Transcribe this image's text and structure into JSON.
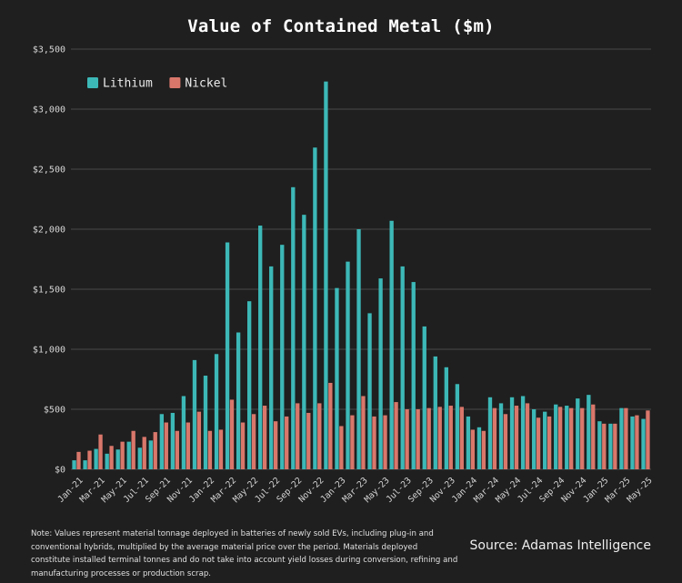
{
  "colors": {
    "background": "#1f1f1f",
    "lithium": "#3cb8b7",
    "nickel": "#d9776b",
    "grid": "#4a4a4a"
  },
  "note": "Note: Values represent material tonnage deployed in batteries of newly sold EVs, including plug-in and conventional hybrids, multiplied by the average material price over the period. Materials deployed constitute installed terminal tonnes and do not take into account yield losses during conversion, refining and manufacturing processes or production scrap.",
  "source": "Source: Adamas Intelligence",
  "chart_data": {
    "type": "bar",
    "title": "Value of Contained Metal ($m)",
    "xlabel": "",
    "ylabel": "",
    "ylim": [
      0,
      3500
    ],
    "yticks": [
      0,
      500,
      1000,
      1500,
      2000,
      2500,
      3000,
      3500
    ],
    "ytick_labels": [
      "$0",
      "$500",
      "$1,000",
      "$1,500",
      "$2,000",
      "$2,500",
      "$3,000",
      "$3,500"
    ],
    "grid": true,
    "legend_position": "top-left",
    "categories": [
      "Jan-21",
      "Feb-21",
      "Mar-21",
      "Apr-21",
      "May-21",
      "Jun-21",
      "Jul-21",
      "Aug-21",
      "Sep-21",
      "Oct-21",
      "Nov-21",
      "Dec-21",
      "Jan-22",
      "Feb-22",
      "Mar-22",
      "Apr-22",
      "May-22",
      "Jun-22",
      "Jul-22",
      "Aug-22",
      "Sep-22",
      "Oct-22",
      "Nov-22",
      "Dec-22",
      "Jan-23",
      "Feb-23",
      "Mar-23",
      "Apr-23",
      "May-23",
      "Jun-23",
      "Jul-23",
      "Aug-23",
      "Sep-23",
      "Oct-23",
      "Nov-23",
      "Dec-23",
      "Jan-24",
      "Feb-24",
      "Mar-24",
      "Apr-24",
      "May-24",
      "Jun-24",
      "Jul-24",
      "Aug-24",
      "Sep-24",
      "Oct-24",
      "Nov-24",
      "Dec-24",
      "Jan-25",
      "Feb-25",
      "Mar-25",
      "Apr-25",
      "May-25"
    ],
    "xtick_labels": [
      "Jan-21",
      "Mar-21",
      "May-21",
      "Jul-21",
      "Sep-21",
      "Nov-21",
      "Jan-22",
      "Mar-22",
      "May-22",
      "Jul-22",
      "Sep-22",
      "Nov-22",
      "Jan-23",
      "Mar-23",
      "May-23",
      "Jul-23",
      "Sep-23",
      "Nov-23",
      "Jan-24",
      "Mar-24",
      "May-24",
      "Jul-24",
      "Sep-24",
      "Nov-24",
      "Jan-25",
      "Mar-25",
      "May-25"
    ],
    "series": [
      {
        "name": "Lithium",
        "color": "#3cb8b7",
        "values": [
          75,
          75,
          170,
          130,
          165,
          230,
          180,
          240,
          460,
          470,
          610,
          910,
          780,
          960,
          1890,
          1140,
          1400,
          2030,
          1690,
          1870,
          2350,
          2120,
          2680,
          3230,
          1510,
          1730,
          2000,
          1300,
          1590,
          2070,
          1690,
          1560,
          1190,
          940,
          850,
          710,
          440,
          350,
          600,
          550,
          600,
          610,
          500,
          480,
          540,
          530,
          590,
          620,
          400,
          380,
          510,
          440,
          420
        ]
      },
      {
        "name": "Nickel",
        "color": "#d9776b",
        "values": [
          145,
          155,
          290,
          195,
          230,
          320,
          270,
          310,
          390,
          320,
          390,
          480,
          320,
          330,
          580,
          390,
          460,
          530,
          400,
          440,
          550,
          470,
          550,
          720,
          360,
          450,
          610,
          440,
          450,
          560,
          500,
          500,
          510,
          520,
          530,
          520,
          330,
          320,
          510,
          460,
          530,
          550,
          430,
          440,
          520,
          510,
          510,
          540,
          380,
          380,
          510,
          450,
          490
        ]
      }
    ]
  }
}
